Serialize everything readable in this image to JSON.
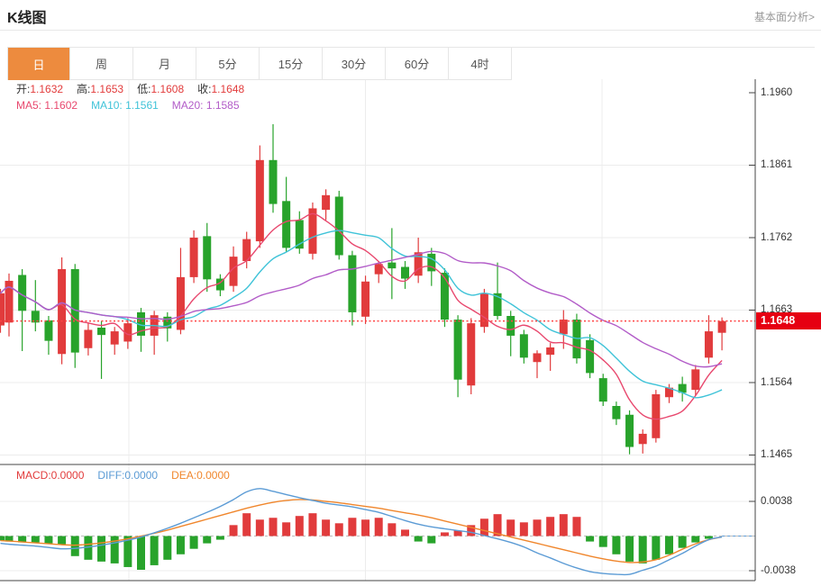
{
  "page": {
    "title": "K线图",
    "analysis_link": "基本面分析>"
  },
  "tabs": {
    "items": [
      "日",
      "周",
      "月",
      "5分",
      "15分",
      "30分",
      "60分",
      "4时"
    ],
    "selected_index": 0
  },
  "quote_header": {
    "open_label": "开:",
    "open": "1.1632",
    "high_label": "高:",
    "high": "1.1653",
    "low_label": "低:",
    "low": "1.1608",
    "close_label": "收:",
    "close": "1.1648"
  },
  "ma_header": {
    "ma5_label": "MA5:",
    "ma5": "1.1602",
    "ma10_label": "MA10:",
    "ma10": "1.1561",
    "ma20_label": "MA20:",
    "ma20": "1.1585"
  },
  "macd_header": {
    "macd_label": "MACD:",
    "macd": "0.0000",
    "diff_label": "DIFF:",
    "diff": "0.0000",
    "dea_label": "DEA:",
    "dea": "0.0000"
  },
  "price_tag": {
    "value": "1.1648"
  },
  "colors": {
    "up": "#e13b3c",
    "down": "#28a32b",
    "ma5": "#e8486e",
    "ma10": "#3fc3d8",
    "ma20": "#b25cc8",
    "diff": "#5b9bd5",
    "dea": "#f0862c",
    "tab_accent": "#ed8b3e",
    "value_red": "#e23b3b",
    "price_line": "#ff4444",
    "price_tag_bg": "#e60012",
    "grid": "#ececec",
    "frame": "#444444"
  },
  "chart_data": {
    "type": "candlestick_with_macd",
    "panes": [
      "price",
      "macd"
    ],
    "grid": "on",
    "y_axis_labels": [
      "1.1960",
      "1.1861",
      "1.1762",
      "1.1663",
      "1.1564",
      "1.1465"
    ],
    "macd_axis_labels": [
      "0.0038",
      "-0.0038"
    ],
    "current_price": 1.1648,
    "ma_periods": [
      5,
      10,
      20
    ],
    "candles": [
      [
        1.1642,
        1.1692,
        1.1632,
        1.1686
      ],
      [
        1.1646,
        1.1713,
        1.1627,
        1.1703
      ],
      [
        1.1711,
        1.1719,
        1.1607,
        1.1662
      ],
      [
        1.1662,
        1.1704,
        1.1634,
        1.1646
      ],
      [
        1.1649,
        1.1655,
        1.1602,
        1.1621
      ],
      [
        1.1603,
        1.1735,
        1.1589,
        1.1719
      ],
      [
        1.1719,
        1.1726,
        1.1584,
        1.1605
      ],
      [
        1.1611,
        1.1646,
        1.1601,
        1.1636
      ],
      [
        1.1639,
        1.1648,
        1.1569,
        1.1629
      ],
      [
        1.1616,
        1.164,
        1.1602,
        1.1634
      ],
      [
        1.162,
        1.1652,
        1.161,
        1.1645
      ],
      [
        1.166,
        1.1666,
        1.1606,
        1.1628
      ],
      [
        1.1628,
        1.1662,
        1.1602,
        1.1656
      ],
      [
        1.1654,
        1.166,
        1.162,
        1.1638
      ],
      [
        1.1636,
        1.1748,
        1.163,
        1.1708
      ],
      [
        1.1708,
        1.1772,
        1.17,
        1.1762
      ],
      [
        1.1764,
        1.1782,
        1.1688,
        1.1705
      ],
      [
        1.1706,
        1.1712,
        1.1682,
        1.169
      ],
      [
        1.1696,
        1.175,
        1.1688,
        1.1736
      ],
      [
        1.173,
        1.177,
        1.172,
        1.176
      ],
      [
        1.1757,
        1.1888,
        1.1748,
        1.1868
      ],
      [
        1.1868,
        1.1917,
        1.1796,
        1.1808
      ],
      [
        1.1812,
        1.1845,
        1.1742,
        1.1748
      ],
      [
        1.1786,
        1.1798,
        1.174,
        1.1747
      ],
      [
        1.174,
        1.181,
        1.1732,
        1.1802
      ],
      [
        1.18,
        1.1828,
        1.1786,
        1.182
      ],
      [
        1.1818,
        1.1826,
        1.1732,
        1.1738
      ],
      [
        1.1738,
        1.1744,
        1.1642,
        1.166
      ],
      [
        1.1654,
        1.171,
        1.1644,
        1.1702
      ],
      [
        1.1712,
        1.173,
        1.17,
        1.1726
      ],
      [
        1.1728,
        1.1775,
        1.1678,
        1.172
      ],
      [
        1.1722,
        1.173,
        1.1692,
        1.1706
      ],
      [
        1.171,
        1.1762,
        1.17,
        1.1742
      ],
      [
        1.174,
        1.1748,
        1.1696,
        1.1716
      ],
      [
        1.1714,
        1.172,
        1.164,
        1.165
      ],
      [
        1.165,
        1.1656,
        1.1544,
        1.1568
      ],
      [
        1.156,
        1.1652,
        1.1548,
        1.1645
      ],
      [
        1.164,
        1.1692,
        1.1632,
        1.1686
      ],
      [
        1.1686,
        1.1728,
        1.165,
        1.1655
      ],
      [
        1.1655,
        1.1662,
        1.16,
        1.1628
      ],
      [
        1.163,
        1.1636,
        1.159,
        1.1598
      ],
      [
        1.1592,
        1.1608,
        1.157,
        1.1604
      ],
      [
        1.1602,
        1.1618,
        1.158,
        1.1612
      ],
      [
        1.163,
        1.1663,
        1.161,
        1.165
      ],
      [
        1.165,
        1.1658,
        1.159,
        1.1597
      ],
      [
        1.1622,
        1.163,
        1.157,
        1.1577
      ],
      [
        1.157,
        1.1576,
        1.1532,
        1.1538
      ],
      [
        1.1532,
        1.1538,
        1.1506,
        1.1514
      ],
      [
        1.152,
        1.1526,
        1.1466,
        1.1476
      ],
      [
        1.148,
        1.15,
        1.1467,
        1.1494
      ],
      [
        1.1488,
        1.1554,
        1.1482,
        1.1548
      ],
      [
        1.1544,
        1.1562,
        1.1536,
        1.1557
      ],
      [
        1.1562,
        1.1572,
        1.1538,
        1.155
      ],
      [
        1.1554,
        1.1588,
        1.1546,
        1.1582
      ],
      [
        1.1598,
        1.1656,
        1.159,
        1.1634
      ],
      [
        1.1632,
        1.1653,
        1.1608,
        1.1648
      ]
    ],
    "macd": {
      "histogram": [
        -0.0005,
        -0.0006,
        -0.0007,
        -0.0007,
        -0.0008,
        -0.0009,
        -0.0022,
        -0.0026,
        -0.0028,
        -0.003,
        -0.0034,
        -0.0037,
        -0.0032,
        -0.0026,
        -0.002,
        -0.0014,
        -0.0008,
        -0.0004,
        0.0012,
        0.0025,
        0.0018,
        0.002,
        0.0015,
        0.0022,
        0.0025,
        0.0018,
        0.0014,
        0.002,
        0.0018,
        0.002,
        0.0014,
        0.0007,
        -0.0006,
        -0.0008,
        0.0004,
        0.0006,
        0.0012,
        0.0019,
        0.0024,
        0.0018,
        0.0015,
        0.0018,
        0.0021,
        0.0024,
        0.0021,
        -0.0006,
        -0.0012,
        -0.002,
        -0.0028,
        -0.003,
        -0.0026,
        -0.002,
        -0.0013,
        -0.0007,
        -0.0003,
        0.0
      ],
      "diff": [
        -0.0008,
        -0.0009,
        -0.001,
        -0.0011,
        -0.00125,
        -0.0014,
        -0.00135,
        -0.0012,
        -0.001,
        -0.00075,
        -0.00045,
        -0.0001,
        0.00035,
        0.00085,
        0.0014,
        0.002,
        0.0026,
        0.00325,
        0.004,
        0.00485,
        0.0052,
        0.0049,
        0.00455,
        0.0042,
        0.0039,
        0.0036,
        0.0034,
        0.0032,
        0.0029,
        0.0026,
        0.00215,
        0.0017,
        0.0013,
        0.001,
        0.0008,
        0.0006,
        0.0004,
        5e-05,
        -0.0003,
        -0.0007,
        -0.0012,
        -0.00185,
        -0.0024,
        -0.003,
        -0.0035,
        -0.0039,
        -0.0041,
        -0.0042,
        -0.0042,
        -0.00375,
        -0.0033,
        -0.0026,
        -0.0019,
        -0.0011,
        -0.0004,
        -0.0001
      ],
      "dea": [
        -0.0005,
        -0.00055,
        -0.00065,
        -0.00075,
        -0.00085,
        -0.00095,
        -0.001,
        -0.0009,
        -0.00075,
        -0.00055,
        -0.0003,
        0.0,
        0.0003,
        0.00065,
        0.00105,
        0.00145,
        0.00185,
        0.00225,
        0.00265,
        0.00305,
        0.0034,
        0.0037,
        0.0039,
        0.004,
        0.00395,
        0.0038,
        0.00365,
        0.00345,
        0.00325,
        0.00305,
        0.0028,
        0.00255,
        0.0023,
        0.002,
        0.00165,
        0.0013,
        0.00095,
        0.0006,
        0.00025,
        -0.0001,
        -0.00045,
        -0.0008,
        -0.00115,
        -0.0015,
        -0.00185,
        -0.0022,
        -0.0025,
        -0.00275,
        -0.0029,
        -0.00285,
        -0.0026,
        -0.0021,
        -0.00145,
        -0.00085,
        -0.0004,
        -0.0001
      ]
    }
  }
}
